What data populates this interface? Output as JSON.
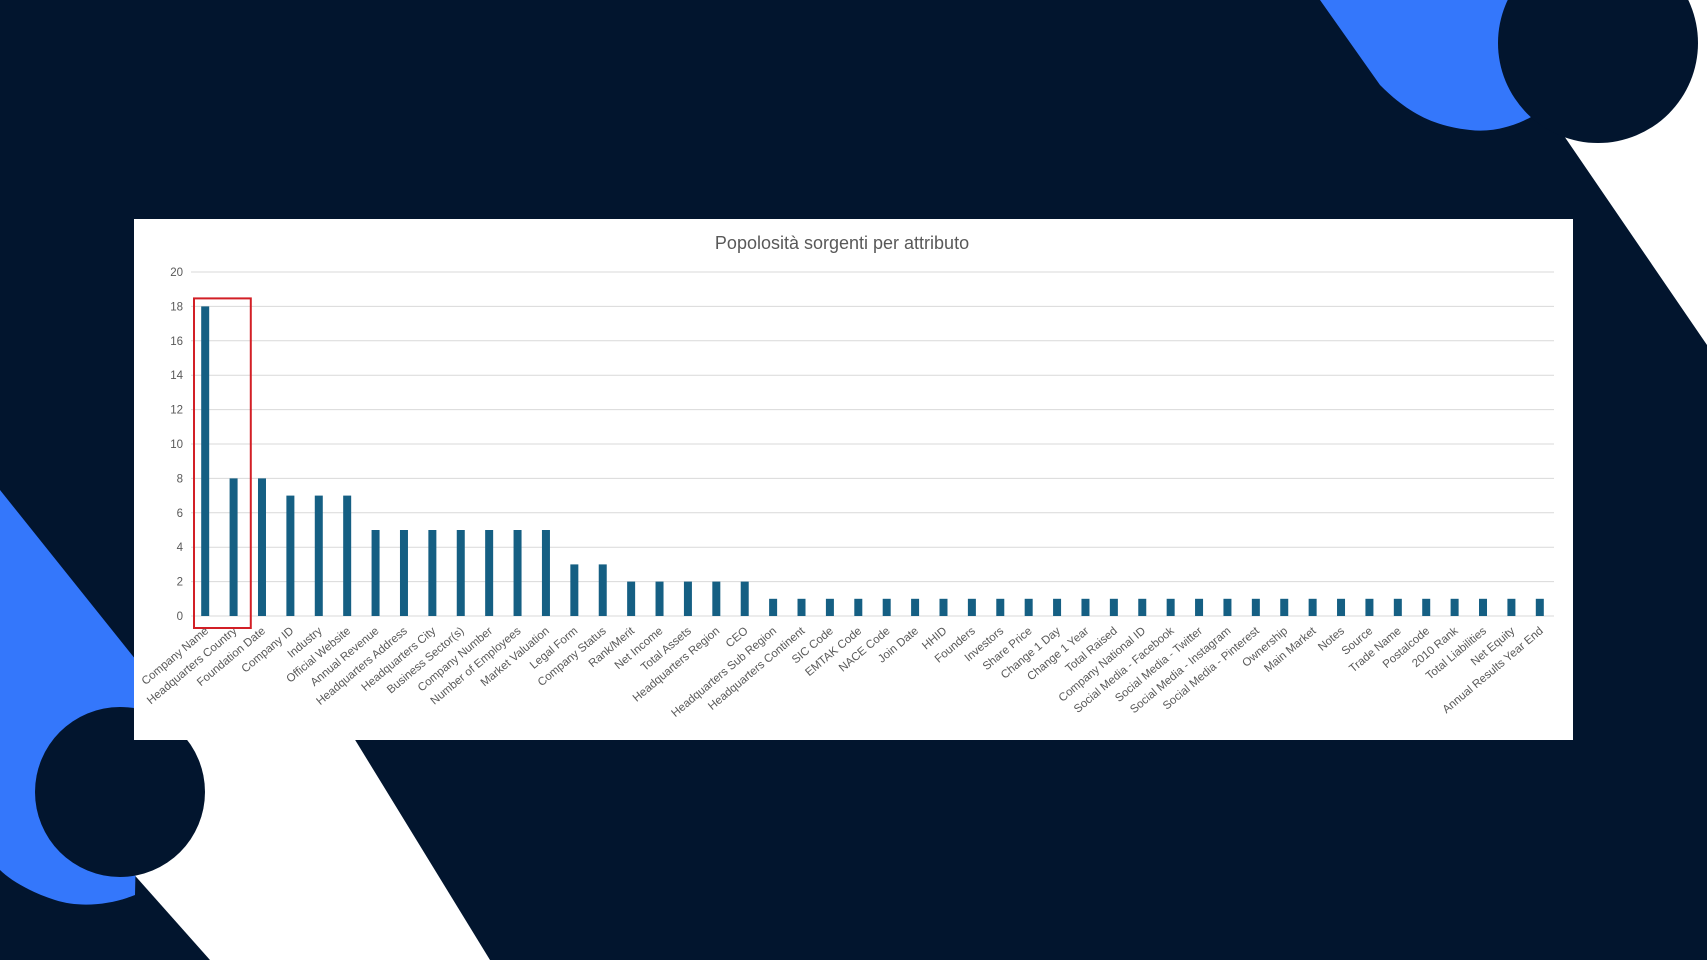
{
  "colors": {
    "background": "#02152e",
    "accent_blue": "#3477fb",
    "white": "#ffffff",
    "bar": "#155f83",
    "highlight_box": "#d21f26",
    "grid": "#d9d9d9"
  },
  "chart_data": {
    "type": "bar",
    "title": "Popolosità sorgenti per attributo",
    "xlabel": "",
    "ylabel": "",
    "ylim": [
      0,
      20
    ],
    "yticks": [
      0,
      2,
      4,
      6,
      8,
      10,
      12,
      14,
      16,
      18,
      20
    ],
    "grid": true,
    "legend": "none",
    "categories": [
      "Company Name",
      "Headquarters Country",
      "Foundation Date",
      "Company ID",
      "Industry",
      "Official Website",
      "Annual Revenue",
      "Headquarters Address",
      "Headquarters City",
      "Business Sector(s)",
      "Company Number",
      "Number of Employees",
      "Market Valuation",
      "Legal Form",
      "Company Status",
      "Rank/Merit",
      "Net Income",
      "Total Assets",
      "Headquarters Region",
      "CEO",
      "Headquarters Sub Region",
      "Headquarters Continent",
      "SIC Code",
      "EMTAK Code",
      "NACE Code",
      "Join Date",
      "HHID",
      "Founders",
      "Investors",
      "Share Price",
      "Change 1 Day",
      "Change 1 Year",
      "Total Raised",
      "Company National ID",
      "Social Media - Facebook",
      "Social Media - Twitter",
      "Social Media - Instagram",
      "Social Media - Pinterest",
      "Ownership",
      "Main Market",
      "Notes",
      "Source",
      "Trade Name",
      "Postalcode",
      "2010 Rank",
      "Total Liabilities",
      "Net Equity",
      "Annual Results Year End"
    ],
    "values": [
      18,
      8,
      8,
      7,
      7,
      7,
      5,
      5,
      5,
      5,
      5,
      5,
      5,
      3,
      3,
      2,
      2,
      2,
      2,
      2,
      1,
      1,
      1,
      1,
      1,
      1,
      1,
      1,
      1,
      1,
      1,
      1,
      1,
      1,
      1,
      1,
      1,
      1,
      1,
      1,
      1,
      1,
      1,
      1,
      1,
      1,
      1,
      1
    ],
    "highlighted_categories": [
      "Company Name",
      "Headquarters Country"
    ]
  }
}
